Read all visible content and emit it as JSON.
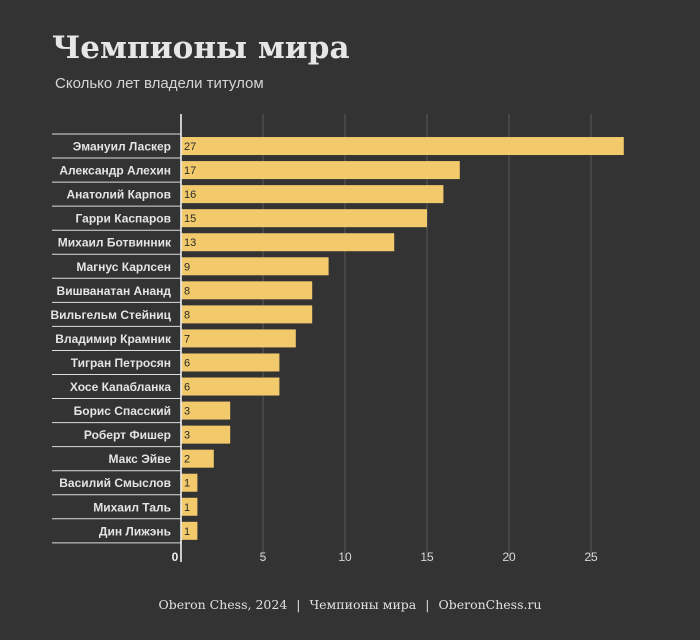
{
  "title": "Чемпионы мира",
  "subtitle": "Сколько лет владели титулом",
  "chart_data": {
    "type": "bar",
    "orientation": "horizontal",
    "categories": [
      "Эмануил Ласкер",
      "Александр Алехин",
      "Анатолий Карпов",
      "Гарри Каспаров",
      "Михаил Ботвинник",
      "Магнус Карлсен",
      "Вишванатан Ананд",
      "Вильгельм Стейниц",
      "Владимир Крамник",
      "Тигран Петросян",
      "Хосе Капабланка",
      "Борис Спасский",
      "Роберт Фишер",
      "Макс Эйве",
      "Василий Смыслов",
      "Михаил Таль",
      "Дин Лижэнь"
    ],
    "values": [
      27,
      17,
      16,
      15,
      13,
      9,
      8,
      8,
      7,
      6,
      6,
      3,
      3,
      2,
      1,
      1,
      1
    ],
    "xlim": [
      0,
      28
    ],
    "xticks": [
      0,
      5,
      10,
      15,
      20,
      25
    ],
    "grid": true,
    "bar_color": "#f2ca6b"
  },
  "footer": {
    "source": "Oberon Chess, 2024",
    "topic": "Чемпионы мира",
    "site": "OberonChess.ru",
    "separator": "|"
  }
}
